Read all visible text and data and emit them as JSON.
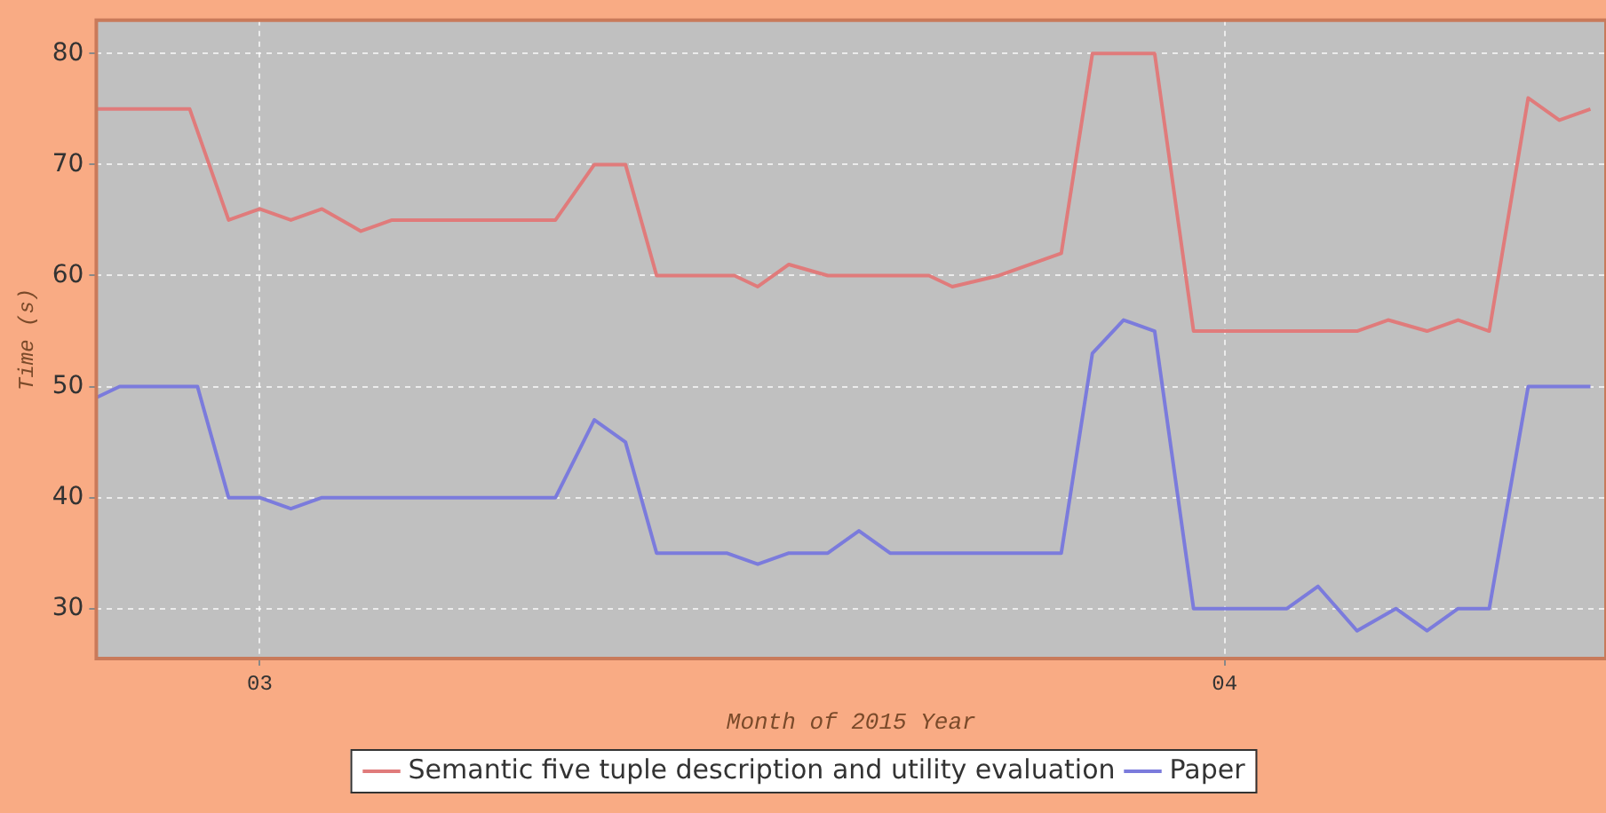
{
  "chart_data": {
    "type": "line",
    "xlabel": "Month of 2015 Year",
    "ylabel": "Time (s)",
    "xlim": [
      "2015-02-23T18:00",
      "2015-04-13T06:00"
    ],
    "xticks": [
      {
        "value": "2015-03-01",
        "label": "03"
      },
      {
        "value": "2015-04-01",
        "label": "04"
      }
    ],
    "ylim": [
      25.5,
      83
    ],
    "yticks": [
      30,
      40,
      50,
      60,
      70,
      80
    ],
    "grid": true,
    "legend": "bottom",
    "marker": "none",
    "line_style": "solid",
    "series": [
      {
        "name": "Semantic five tuple description and utility evaluation",
        "color": "#e07b7b",
        "x": [
          "2015-02-23T18:00",
          "2015-02-26T18:00",
          "2015-02-28",
          "2015-03-01",
          "2015-03-02",
          "2015-03-03",
          "2015-03-04T06:00",
          "2015-03-05T06:00",
          "2015-03-10T12:00",
          "2015-03-11T18:00",
          "2015-03-12T18:00",
          "2015-03-13T18:00",
          "2015-03-16T06:00",
          "2015-03-17",
          "2015-03-18",
          "2015-03-19T06:00",
          "2015-03-22T12:00",
          "2015-03-23T06:00",
          "2015-03-24T18:00",
          "2015-03-26T18:00",
          "2015-03-27T18:00",
          "2015-03-29T18:00",
          "2015-03-31",
          "2015-04-05T06:00",
          "2015-04-06T06:00",
          "2015-04-07T12:00",
          "2015-04-08T12:00",
          "2015-04-09T12:00",
          "2015-04-10T18:00",
          "2015-04-11T18:00",
          "2015-04-12T18:00"
        ],
        "values": [
          75,
          75,
          65,
          66,
          65,
          66,
          64,
          65,
          65,
          70,
          70,
          60,
          60,
          59,
          61,
          60,
          60,
          59,
          60,
          62,
          80,
          80,
          55,
          55,
          56,
          55,
          56,
          55,
          76,
          74,
          75
        ]
      },
      {
        "name": "Paper",
        "color": "#7b7bdc",
        "x": [
          "2015-02-23T18:00",
          "2015-02-24T12:00",
          "2015-02-27",
          "2015-02-28",
          "2015-03-01",
          "2015-03-02",
          "2015-03-03",
          "2015-03-10T12:00",
          "2015-03-11T18:00",
          "2015-03-12T18:00",
          "2015-03-13T18:00",
          "2015-03-16",
          "2015-03-17",
          "2015-03-18",
          "2015-03-19T06:00",
          "2015-03-20T06:00",
          "2015-03-21T06:00",
          "2015-03-26T18:00",
          "2015-03-27T18:00",
          "2015-03-28T18:00",
          "2015-03-29T18:00",
          "2015-03-31",
          "2015-04-03",
          "2015-04-04",
          "2015-04-05T06:00",
          "2015-04-06T12:00",
          "2015-04-07T12:00",
          "2015-04-08T12:00",
          "2015-04-09T12:00",
          "2015-04-10T18:00",
          "2015-04-12T18:00"
        ],
        "values": [
          49,
          50,
          50,
          40,
          40,
          39,
          40,
          40,
          47,
          45,
          35,
          35,
          34,
          35,
          35,
          37,
          35,
          35,
          53,
          56,
          55,
          30,
          30,
          32,
          28,
          30,
          28,
          30,
          30,
          50,
          50
        ]
      }
    ]
  }
}
